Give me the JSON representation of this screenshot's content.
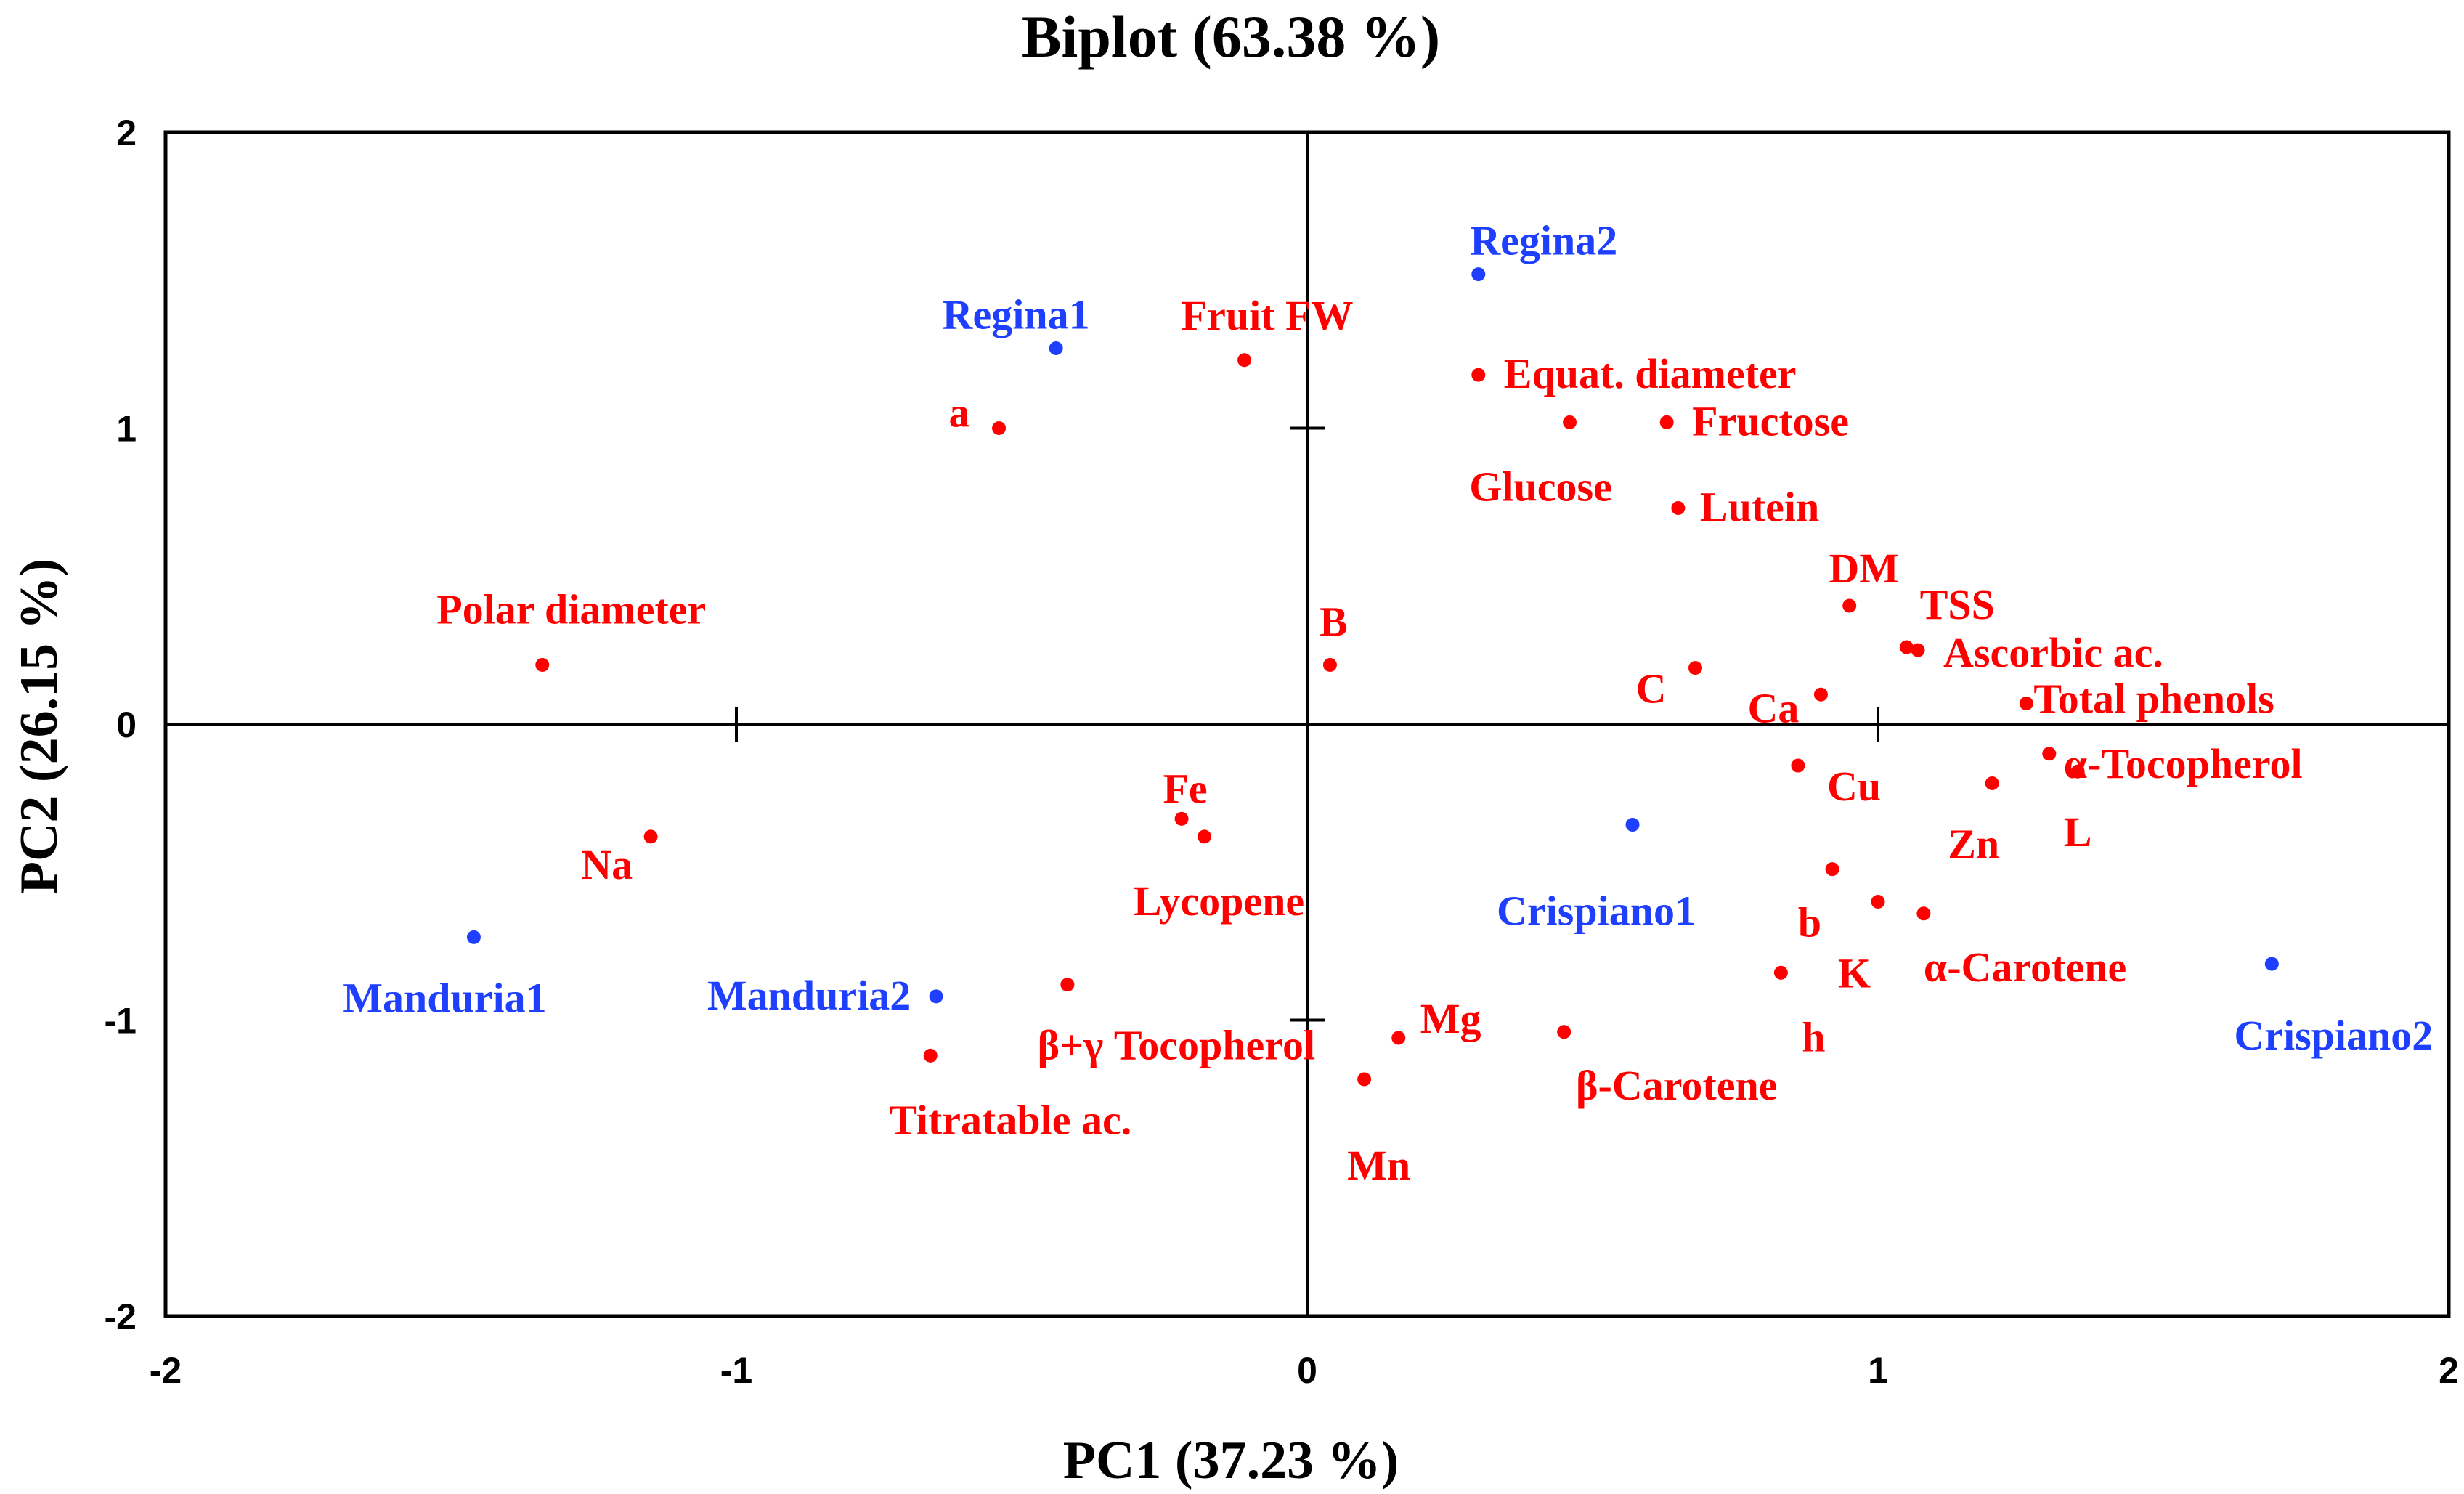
{
  "chart_data": {
    "type": "scatter",
    "title": "Biplot (63.38 %)",
    "xlabel": "PC1 (37.23 %)",
    "ylabel": "PC2 (26.15 %)",
    "xlim": [
      -2,
      2
    ],
    "ylim": [
      -2,
      2
    ],
    "xticks": [
      -2,
      -1,
      0,
      1,
      2
    ],
    "yticks": [
      -2,
      -1,
      0,
      1,
      2
    ],
    "colors": {
      "variables": "#ff0000",
      "observations": "#1f3fff"
    },
    "series": [
      {
        "name": "variables",
        "points": [
          {
            "label": "Fruit FW",
            "x": -0.11,
            "y": 1.23,
            "anchor": "end",
            "dx": 150,
            "dy": -60
          },
          {
            "label": "a",
            "x": -0.54,
            "y": 1.0,
            "anchor": "end",
            "dx": -40,
            "dy": -20
          },
          {
            "label": "Equat. diameter",
            "x": 0.3,
            "y": 1.18,
            "anchor": "start",
            "dx": 35,
            "dy": 0
          },
          {
            "label": "Fructose",
            "x": 0.63,
            "y": 1.02,
            "anchor": "start",
            "dx": 35,
            "dy": 0
          },
          {
            "label": "Glucose",
            "x": 0.46,
            "y": 1.02,
            "anchor": "middle",
            "dx": -40,
            "dy": 90
          },
          {
            "label": "Lutein",
            "x": 0.65,
            "y": 0.73,
            "anchor": "start",
            "dx": 30,
            "dy": 0
          },
          {
            "label": "Polar diameter",
            "x": -1.34,
            "y": 0.2,
            "anchor": "middle",
            "dx": 40,
            "dy": -75
          },
          {
            "label": "B",
            "x": 0.04,
            "y": 0.2,
            "anchor": "middle",
            "dx": 5,
            "dy": -58
          },
          {
            "label": "DM",
            "x": 0.95,
            "y": 0.4,
            "anchor": "middle",
            "dx": 20,
            "dy": -50
          },
          {
            "label": "TSS",
            "x": 1.05,
            "y": 0.26,
            "anchor": "middle",
            "dx": 70,
            "dy": -57
          },
          {
            "label": "Ascorbic ac.",
            "x": 1.07,
            "y": 0.25,
            "anchor": "start",
            "dx": 35,
            "dy": 5
          },
          {
            "label": "C",
            "x": 0.68,
            "y": 0.19,
            "anchor": "end",
            "dx": -40,
            "dy": 30
          },
          {
            "label": "Ca",
            "x": 0.9,
            "y": 0.1,
            "anchor": "end",
            "dx": -30,
            "dy": 20
          },
          {
            "label": "Total phenols",
            "x": 1.26,
            "y": 0.07,
            "anchor": "start",
            "dx": 10,
            "dy": -5
          },
          {
            "label": "α-Tocopherol",
            "x": 1.3,
            "y": -0.1,
            "anchor": "start",
            "dx": 20,
            "dy": 15
          },
          {
            "label": "L",
            "x": 1.35,
            "y": -0.16,
            "anchor": "middle",
            "dx": 0,
            "dy": 85
          },
          {
            "label": "Cu",
            "x": 0.86,
            "y": -0.14,
            "anchor": "start",
            "dx": 40,
            "dy": 30
          },
          {
            "label": "Zn",
            "x": 1.2,
            "y": -0.2,
            "anchor": "end",
            "dx": 10,
            "dy": 85
          },
          {
            "label": "Fe",
            "x": -0.22,
            "y": -0.32,
            "anchor": "middle",
            "dx": 5,
            "dy": -40
          },
          {
            "label": "Lycopene",
            "x": -0.18,
            "y": -0.38,
            "anchor": "middle",
            "dx": 20,
            "dy": 90
          },
          {
            "label": "Na",
            "x": -1.15,
            "y": -0.38,
            "anchor": "end",
            "dx": -25,
            "dy": 40
          },
          {
            "label": "b",
            "x": 0.92,
            "y": -0.49,
            "anchor": "end",
            "dx": -15,
            "dy": 75
          },
          {
            "label": "K",
            "x": 1.0,
            "y": -0.6,
            "anchor": "end",
            "dx": -10,
            "dy": 100
          },
          {
            "label": "α-Carotene",
            "x": 1.08,
            "y": -0.64,
            "anchor": "start",
            "dx": 0,
            "dy": 75
          },
          {
            "label": "h",
            "x": 0.83,
            "y": -0.84,
            "anchor": "middle",
            "dx": 45,
            "dy": 90
          },
          {
            "label": "β+γ Tocopherol",
            "x": -0.42,
            "y": -0.88,
            "anchor": "middle",
            "dx": 150,
            "dy": 85
          },
          {
            "label": "Titratable ac.",
            "x": -0.66,
            "y": -1.12,
            "anchor": "middle",
            "dx": 110,
            "dy": 90
          },
          {
            "label": "Mg",
            "x": 0.16,
            "y": -1.06,
            "anchor": "start",
            "dx": 30,
            "dy": -25
          },
          {
            "label": "Mn",
            "x": 0.1,
            "y": -1.2,
            "anchor": "middle",
            "dx": 20,
            "dy": 120
          },
          {
            "label": "β-Carotene",
            "x": 0.45,
            "y": -1.04,
            "anchor": "middle",
            "dx": 155,
            "dy": 75
          }
        ]
      },
      {
        "name": "observations",
        "points": [
          {
            "label": "Regina1",
            "x": -0.44,
            "y": 1.27,
            "anchor": "middle",
            "dx": -55,
            "dy": -45
          },
          {
            "label": "Regina2",
            "x": 0.3,
            "y": 1.52,
            "anchor": "middle",
            "dx": 90,
            "dy": -45
          },
          {
            "label": "Crispiano1",
            "x": 0.57,
            "y": -0.34,
            "anchor": "middle",
            "dx": -50,
            "dy": 120
          },
          {
            "label": "Crispiano2",
            "x": 1.69,
            "y": -0.81,
            "anchor": "middle",
            "dx": 85,
            "dy": 100
          },
          {
            "label": "Manduria1",
            "x": -1.46,
            "y": -0.72,
            "anchor": "middle",
            "dx": -40,
            "dy": 85
          },
          {
            "label": "Manduria2",
            "x": -0.65,
            "y": -0.92,
            "anchor": "middle",
            "dx": -175,
            "dy": 0
          }
        ]
      }
    ]
  }
}
